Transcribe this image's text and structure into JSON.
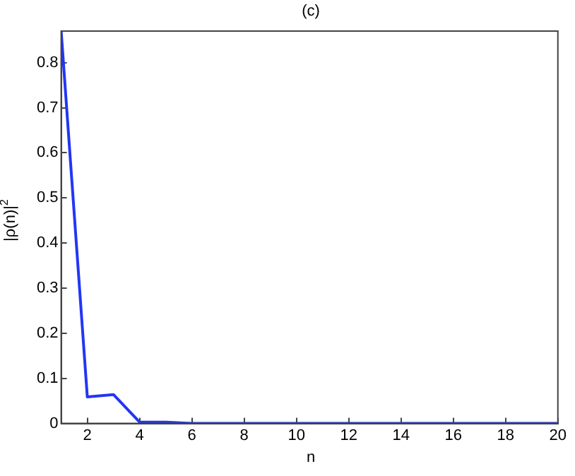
{
  "chart_data": {
    "type": "line",
    "title": "(c)",
    "xlabel": "n",
    "ylabel": "|ρ(n)|$^{2}$",
    "x": [
      1,
      2,
      3,
      4,
      5,
      6,
      7,
      8,
      9,
      10,
      11,
      12,
      13,
      14,
      15,
      16,
      17,
      18,
      19,
      20
    ],
    "series": [
      {
        "color": "#2236f5",
        "values": [
          0.87,
          0.059,
          0.064,
          0.003,
          0.003,
          0,
          0,
          0,
          0,
          0,
          0,
          0,
          0,
          0,
          0,
          0,
          0,
          0,
          0,
          0
        ]
      }
    ],
    "xlim": [
      1,
      20
    ],
    "xticks": [
      2,
      4,
      6,
      8,
      10,
      12,
      14,
      16,
      18,
      20
    ],
    "ylim": [
      0,
      0.87
    ],
    "yticks": [
      0,
      0.1,
      0.2,
      0.3,
      0.4,
      0.5,
      0.6,
      0.7,
      0.8
    ],
    "grid": false,
    "legend": false,
    "marker": "none",
    "line_style": "solid"
  }
}
